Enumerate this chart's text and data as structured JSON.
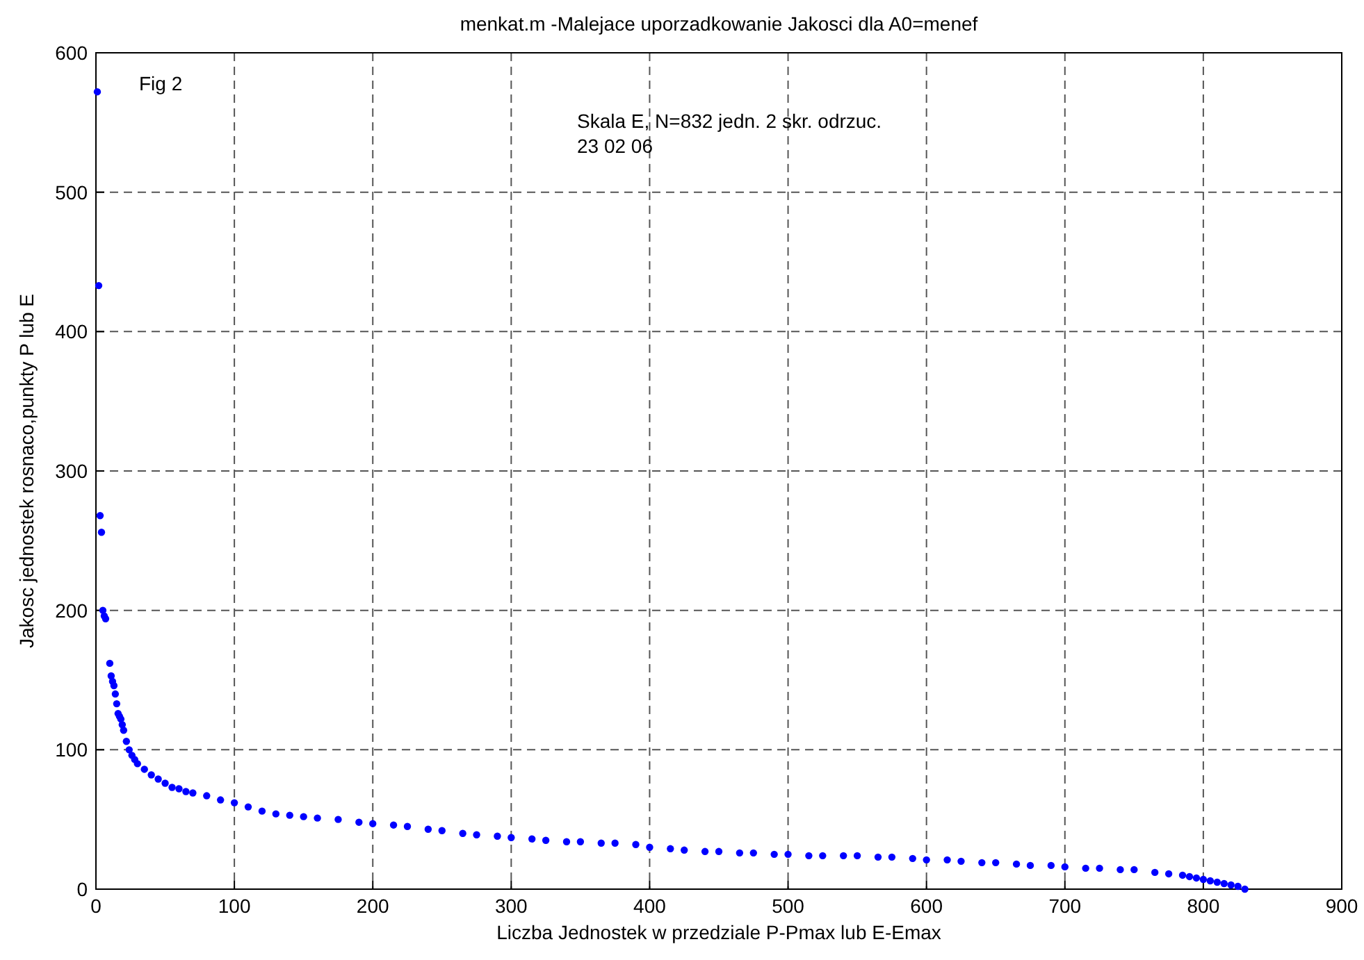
{
  "chart_data": {
    "type": "scatter",
    "title": "menkat.m -Malejace uporzadkowanie Jakosci dla A0=menef",
    "xlabel": "Liczba Jednostek w przedziale P-Pmax lub E-Emax",
    "ylabel": "Jakosc jednostek rosnaco,punkty P lub E",
    "annotations": [
      "Fig 2",
      "Skala E, N=832 jedn. 2 skr. odrzuc.",
      "23 02 06"
    ],
    "xlim": [
      0,
      900
    ],
    "xticks": [
      0,
      100,
      200,
      300,
      400,
      500,
      600,
      700,
      800,
      900
    ],
    "ylim": [
      0,
      600
    ],
    "yticks": [
      0,
      100,
      200,
      300,
      400,
      500,
      600
    ],
    "grid": true,
    "marker": "circle",
    "series": [
      {
        "color": "#0000ff",
        "x": [
          1,
          2,
          3,
          4,
          5,
          6,
          7,
          10,
          11,
          12,
          13,
          14,
          15,
          16,
          17,
          18,
          19,
          20,
          22,
          24,
          26,
          28,
          30,
          35,
          40,
          45,
          50,
          55,
          60,
          65,
          70,
          80,
          90,
          100,
          110,
          120,
          130,
          140,
          150,
          160,
          175,
          190,
          200,
          215,
          225,
          240,
          250,
          265,
          275,
          290,
          300,
          315,
          325,
          340,
          350,
          365,
          375,
          390,
          400,
          415,
          425,
          440,
          450,
          465,
          475,
          490,
          500,
          515,
          525,
          540,
          550,
          565,
          575,
          590,
          600,
          615,
          625,
          640,
          650,
          665,
          675,
          690,
          700,
          715,
          725,
          740,
          750,
          765,
          775,
          785,
          790,
          795,
          800,
          805,
          810,
          815,
          820,
          825,
          830
        ],
        "values": [
          572,
          433,
          268,
          256,
          200,
          196,
          194,
          162,
          153,
          149,
          146,
          140,
          133,
          126,
          124,
          122,
          118,
          114,
          106,
          100,
          96,
          93,
          90,
          86,
          82,
          79,
          76,
          73,
          72,
          70,
          69,
          67,
          64,
          62,
          59,
          56,
          54,
          53,
          52,
          51,
          50,
          48,
          47,
          46,
          45,
          43,
          42,
          40,
          39,
          38,
          37,
          36,
          35,
          34,
          34,
          33,
          33,
          32,
          30,
          29,
          28,
          27,
          27,
          26,
          26,
          25,
          25,
          24,
          24,
          24,
          24,
          23,
          23,
          22,
          21,
          21,
          20,
          19,
          19,
          18,
          17,
          17,
          16,
          15,
          15,
          14,
          14,
          12,
          11,
          10,
          9,
          8,
          7,
          6,
          5,
          4,
          3,
          2,
          0
        ]
      }
    ]
  }
}
